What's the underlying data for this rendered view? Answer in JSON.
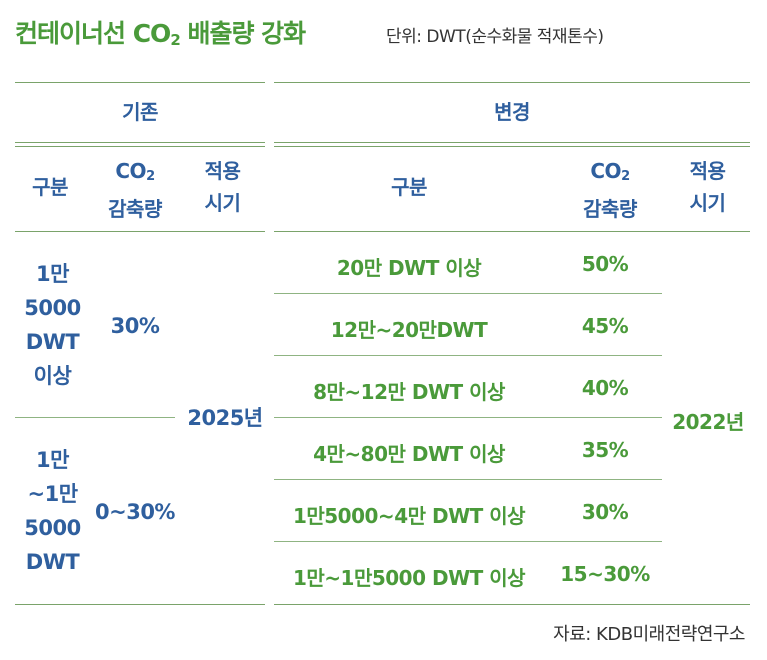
{
  "title": {
    "main": "컨테이너선 CO",
    "sub": "2",
    "tail": " 배출량 강화"
  },
  "unit_note": "단위: DWT(순수화물 적재톤수)",
  "groups": {
    "existing": "기존",
    "changed": "변경"
  },
  "columns": {
    "category": "구분",
    "co2_line1": "CO",
    "co2_sub": "2",
    "co2_line2": "감축량",
    "apply_line1": "적용",
    "apply_line2": "시기"
  },
  "existing_rows": [
    {
      "category_lines": [
        "1만",
        "5000",
        "DWT",
        "이상"
      ],
      "reduction": "30%"
    },
    {
      "category_lines": [
        "1만",
        "~1만",
        "5000",
        "DWT"
      ],
      "reduction": "0~30%"
    }
  ],
  "existing_period": "2025년",
  "changed_rows": [
    {
      "category": "20만 DWT  이상",
      "reduction": "50%"
    },
    {
      "category": "12만~20만DWT",
      "reduction": "45%"
    },
    {
      "category": "8만~12만 DWT  이상",
      "reduction": "40%"
    },
    {
      "category": "4만~80만 DWT  이상",
      "reduction": "35%"
    },
    {
      "category": "1만5000~4만 DWT  이상",
      "reduction": "30%"
    },
    {
      "category": "1만~1만5000 DWT  이상",
      "reduction": "15~30%"
    }
  ],
  "changed_period": "2022년",
  "source": "자료: KDB미래전략연구소",
  "colors": {
    "green": "#4a9a3a",
    "blue": "#2f5f9e",
    "rule": "#7aa36a"
  }
}
